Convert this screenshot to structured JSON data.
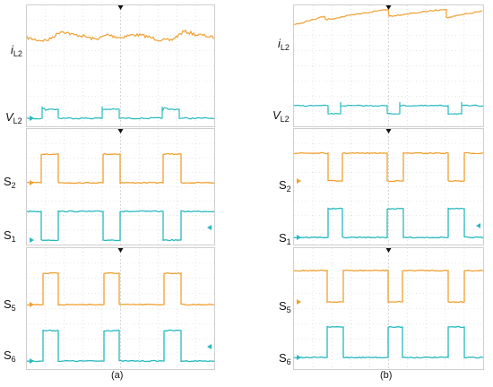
{
  "colors": {
    "orange": "#f0a030",
    "cyan": "#27b9c0",
    "grid": "#cfcfcf",
    "marker": "#111111"
  },
  "panel_a": {
    "caption": "(a)",
    "labels": {
      "iL2": "i",
      "iL2_sub": "L2",
      "VL2": "V",
      "VL2_sub": "L2",
      "S2": "S",
      "S2_sub": "2",
      "S1": "S",
      "S1_sub": "1",
      "S5": "S",
      "S5_sub": "5",
      "S6": "S",
      "S6_sub": "6"
    }
  },
  "panel_b": {
    "caption": "(b)",
    "labels": {
      "iL2": "i",
      "iL2_sub": "L2",
      "VL2": "V",
      "VL2_sub": "L2",
      "S2": "S",
      "S2_sub": "2",
      "S1": "S",
      "S1_sub": "1",
      "S5": "S",
      "S5_sub": "5",
      "S6": "S",
      "S6_sub": "6"
    }
  }
}
